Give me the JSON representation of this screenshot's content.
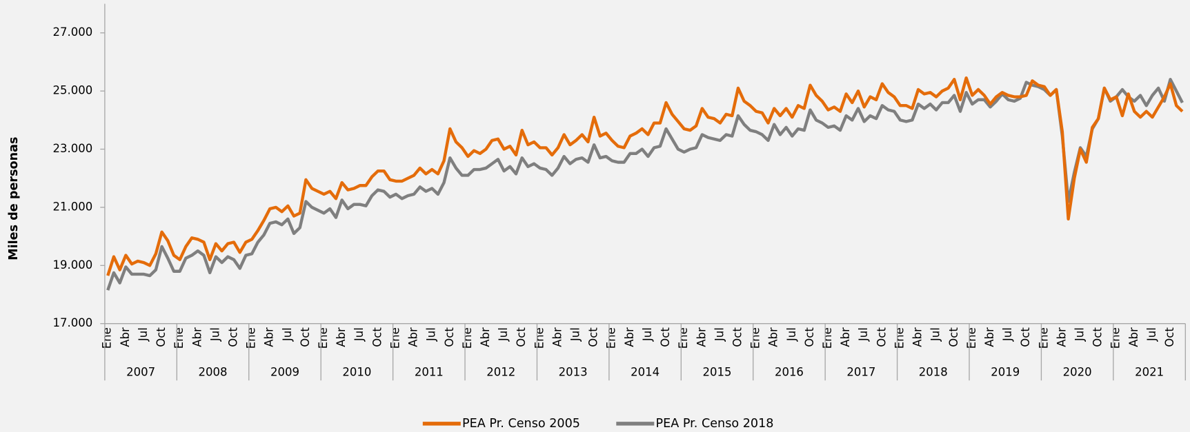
{
  "chart_data": {
    "type": "line",
    "y_label": "Miles de personas",
    "categories": [
      "Ene",
      null,
      null,
      "Abr",
      null,
      null,
      "Jul",
      null,
      null,
      "Oct",
      null,
      null,
      "Ene",
      null,
      null,
      "Abr",
      null,
      null,
      "Jul",
      null,
      null,
      "Oct",
      null,
      null,
      "Ene",
      null,
      null,
      "Abr",
      null,
      null,
      "Jul",
      null,
      null,
      "Oct",
      null,
      null,
      "Ene",
      null,
      null,
      "Abr",
      null,
      null,
      "Jul",
      null,
      null,
      "Oct",
      null,
      null,
      "Ene",
      null,
      null,
      "Abr",
      null,
      null,
      "Jul",
      null,
      null,
      "Oct",
      null,
      null,
      "Ene",
      null,
      null,
      "Abr",
      null,
      null,
      "Jul",
      null,
      null,
      "Oct",
      null,
      null,
      "Ene",
      null,
      null,
      "Abr",
      null,
      null,
      "Jul",
      null,
      null,
      "Oct",
      null,
      null,
      "Ene",
      null,
      null,
      "Abr",
      null,
      null,
      "Jul",
      null,
      null,
      "Oct",
      null,
      null,
      "Ene",
      null,
      null,
      "Abr",
      null,
      null,
      "Jul",
      null,
      null,
      "Oct",
      null,
      null,
      "Ene",
      null,
      null,
      "Abr",
      null,
      null,
      "Jul",
      null,
      null,
      "Oct",
      null,
      null,
      "Ene",
      null,
      null,
      "Abr",
      null,
      null,
      "Jul",
      null,
      null,
      "Oct",
      null,
      null,
      "Ene",
      null,
      null,
      "Abr",
      null,
      null,
      "Jul",
      null,
      null,
      "Oct",
      null,
      null,
      "Ene",
      null,
      null,
      "Abr",
      null,
      null,
      "Jul",
      null,
      null,
      "Oct",
      null,
      null,
      "Ene",
      null,
      null,
      "Abr",
      null,
      null,
      "Jul",
      null,
      null,
      "Oct",
      null,
      null,
      "Ene",
      null,
      null,
      "Abr",
      null,
      null,
      "Jul",
      null,
      null,
      "Oct",
      null,
      null
    ],
    "years": [
      "2007",
      "2008",
      "2009",
      "2010",
      "2011",
      "2012",
      "2013",
      "2014",
      "2015",
      "2016",
      "2017",
      "2018",
      "2019",
      "2020",
      "2021"
    ],
    "series": [
      {
        "name": "PEA Pr. Censo 2005",
        "color": "#e46c0a",
        "values": [
          18650,
          19300,
          18850,
          19350,
          19050,
          19150,
          19100,
          19000,
          19400,
          20150,
          19850,
          19350,
          19200,
          19650,
          19950,
          19900,
          19800,
          19200,
          19750,
          19500,
          19750,
          19800,
          19450,
          19800,
          19900,
          20200,
          20550,
          20950,
          21000,
          20850,
          21050,
          20700,
          20800,
          21950,
          21650,
          21550,
          21450,
          21550,
          21300,
          21850,
          21600,
          21650,
          21750,
          21750,
          22050,
          22250,
          22250,
          21950,
          21900,
          21900,
          22000,
          22100,
          22350,
          22150,
          22300,
          22150,
          22600,
          23700,
          23250,
          23050,
          22750,
          22950,
          22850,
          23000,
          23300,
          23350,
          23000,
          23100,
          22800,
          23650,
          23150,
          23250,
          23050,
          23050,
          22800,
          23050,
          23500,
          23150,
          23300,
          23500,
          23250,
          24100,
          23450,
          23550,
          23300,
          23100,
          23050,
          23450,
          23550,
          23700,
          23500,
          23900,
          23900,
          24600,
          24200,
          23950,
          23700,
          23650,
          23800,
          24400,
          24100,
          24050,
          23900,
          24200,
          24150,
          25100,
          24650,
          24500,
          24300,
          24250,
          23900,
          24400,
          24150,
          24400,
          24100,
          24500,
          24400,
          25200,
          24850,
          24650,
          24350,
          24450,
          24300,
          24900,
          24600,
          25000,
          24450,
          24800,
          24700,
          25250,
          24950,
          24800,
          24500,
          24500,
          24400,
          25050,
          24900,
          24950,
          24800,
          25000,
          25100,
          25400,
          24700,
          25450,
          24850,
          25050,
          24850,
          24550,
          24800,
          24950,
          24850,
          24800,
          24800,
          24850,
          25350,
          25200,
          25150,
          24850,
          25050,
          23600,
          20600,
          22000,
          23000,
          22550,
          23750,
          24050,
          25100,
          24700,
          24800,
          24150,
          24900,
          24300,
          24100,
          24300,
          24100,
          24450,
          24800,
          25250,
          24500,
          24300
        ]
      },
      {
        "name": "PEA Pr. Censo 2018",
        "color": "#7f7f7f",
        "values": [
          18150,
          18750,
          18400,
          18950,
          18700,
          18700,
          18700,
          18650,
          18850,
          19650,
          19250,
          18800,
          18800,
          19250,
          19350,
          19500,
          19350,
          18750,
          19300,
          19100,
          19300,
          19200,
          18900,
          19350,
          19400,
          19800,
          20050,
          20450,
          20500,
          20400,
          20600,
          20100,
          20300,
          21200,
          21000,
          20900,
          20800,
          20950,
          20650,
          21250,
          20950,
          21100,
          21100,
          21050,
          21400,
          21600,
          21550,
          21350,
          21450,
          21300,
          21400,
          21450,
          21700,
          21550,
          21650,
          21450,
          21850,
          22700,
          22350,
          22100,
          22100,
          22300,
          22300,
          22350,
          22500,
          22650,
          22250,
          22400,
          22150,
          22700,
          22400,
          22500,
          22350,
          22300,
          22100,
          22350,
          22750,
          22500,
          22650,
          22700,
          22550,
          23150,
          22700,
          22750,
          22600,
          22550,
          22550,
          22850,
          22850,
          23000,
          22750,
          23050,
          23100,
          23700,
          23350,
          23000,
          22900,
          23000,
          23050,
          23500,
          23400,
          23350,
          23300,
          23500,
          23450,
          24150,
          23850,
          23650,
          23600,
          23500,
          23300,
          23850,
          23500,
          23750,
          23450,
          23700,
          23650,
          24350,
          24000,
          23900,
          23750,
          23800,
          23650,
          24150,
          24000,
          24400,
          23950,
          24150,
          24050,
          24500,
          24350,
          24300,
          24000,
          23950,
          24000,
          24550,
          24400,
          24550,
          24350,
          24600,
          24600,
          24850,
          24300,
          24950,
          24550,
          24700,
          24700,
          24450,
          24650,
          24900,
          24700,
          24650,
          24750,
          25300,
          25200,
          25150,
          25050,
          24850,
          25050,
          23450,
          21200,
          22200,
          23050,
          22750,
          23700,
          24050,
          25100,
          24650,
          24800,
          25050,
          24800,
          24650,
          24850,
          24500,
          24850,
          25100,
          24650,
          25400,
          25000,
          24600
        ]
      }
    ],
    "ylim": [
      17000,
      28000
    ],
    "yticks": [
      {
        "value": 17000,
        "label": "17.000"
      },
      {
        "value": 19000,
        "label": "19.000"
      },
      {
        "value": 21000,
        "label": "21.000"
      },
      {
        "value": 23000,
        "label": "23.000"
      },
      {
        "value": 25000,
        "label": "25.000"
      },
      {
        "value": 27000,
        "label": "27.000"
      }
    ],
    "legend": "bottom"
  }
}
